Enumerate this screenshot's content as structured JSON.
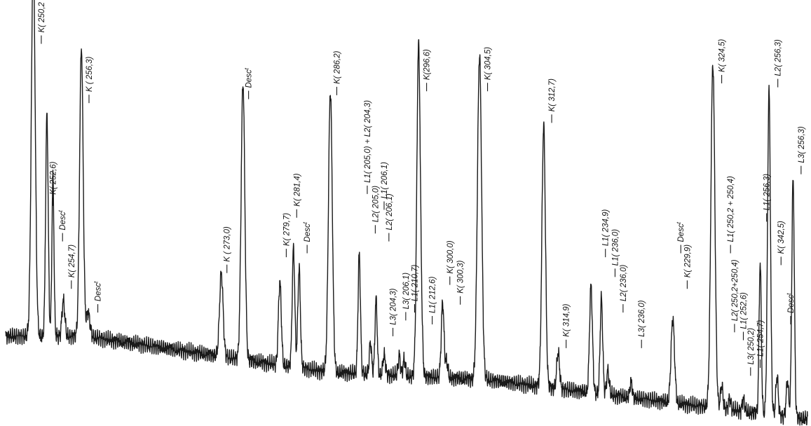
{
  "chart_data": {
    "type": "line",
    "title": "",
    "xlabel": "",
    "ylabel": "",
    "grid": false,
    "legend": "none",
    "line_color": "#1a1a1a",
    "x_range": [
      0,
      1000
    ],
    "y_range": [
      0,
      100
    ],
    "baseline": [
      [
        0,
        22
      ],
      [
        100,
        22
      ],
      [
        400,
        13
      ],
      [
        600,
        11
      ],
      [
        1000,
        1
      ]
    ],
    "peaks": [
      {
        "x": 34.5,
        "height": 96,
        "w": 2.4
      },
      {
        "x": 51.5,
        "height": 56,
        "w": 1.6
      },
      {
        "x": 59,
        "height": 40,
        "w": 1.3
      },
      {
        "x": 72,
        "height": 9,
        "w": 1.8
      },
      {
        "x": 94.5,
        "height": 73,
        "w": 2.2
      },
      {
        "x": 103,
        "height": 6,
        "w": 2.2
      },
      {
        "x": 269,
        "height": 21,
        "w": 2.2
      },
      {
        "x": 296,
        "height": 70,
        "w": 2.3
      },
      {
        "x": 342,
        "height": 21,
        "w": 1.8
      },
      {
        "x": 359,
        "height": 30,
        "w": 1.6
      },
      {
        "x": 366,
        "height": 25,
        "w": 1.6
      },
      {
        "x": 405,
        "height": 71,
        "w": 2.4
      },
      {
        "x": 441,
        "height": 30,
        "w": 1.5
      },
      {
        "x": 455,
        "height": 8,
        "w": 1.4
      },
      {
        "x": 462,
        "height": 19,
        "w": 1.4
      },
      {
        "x": 472,
        "height": 5,
        "w": 1.5
      },
      {
        "x": 491,
        "height": 5,
        "w": 1.4
      },
      {
        "x": 497,
        "height": 4,
        "w": 1.4
      },
      {
        "x": 515,
        "height": 84,
        "w": 2.2
      },
      {
        "x": 519,
        "height": 6,
        "w": 1.4
      },
      {
        "x": 545,
        "height": 19,
        "w": 1.7
      },
      {
        "x": 550,
        "height": 4,
        "w": 1.5
      },
      {
        "x": 591,
        "height": 82,
        "w": 2.6
      },
      {
        "x": 671,
        "height": 66,
        "w": 2.2
      },
      {
        "x": 689,
        "height": 9,
        "w": 1.8
      },
      {
        "x": 730,
        "height": 27,
        "w": 1.8
      },
      {
        "x": 743,
        "height": 24,
        "w": 1.6
      },
      {
        "x": 751,
        "height": 6,
        "w": 1.6
      },
      {
        "x": 780,
        "height": 4,
        "w": 1.4
      },
      {
        "x": 832,
        "height": 21,
        "w": 2.2
      },
      {
        "x": 882,
        "height": 87,
        "w": 2.5
      },
      {
        "x": 893,
        "height": 6,
        "w": 1.5
      },
      {
        "x": 903,
        "height": 3,
        "w": 1.4
      },
      {
        "x": 920,
        "height": 3,
        "w": 1.4
      },
      {
        "x": 941,
        "height": 38,
        "w": 1.4
      },
      {
        "x": 952,
        "height": 82,
        "w": 1.8
      },
      {
        "x": 962,
        "height": 10,
        "w": 1.5
      },
      {
        "x": 975,
        "height": 9,
        "w": 1.5
      },
      {
        "x": 982,
        "height": 60,
        "w": 1.6
      }
    ],
    "labels": [
      {
        "text": "K( 250,2 + 250,4)",
        "x": 44.5,
        "y": 96
      },
      {
        "text": "K( 252,6)",
        "x": 59,
        "y": 55
      },
      {
        "text": "Desc",
        "sup": "t",
        "x": 71,
        "y": 46
      },
      {
        "text": "K( 254,7)",
        "x": 82,
        "y": 34
      },
      {
        "text": "K ( 256,3)",
        "x": 104,
        "y": 81
      },
      {
        "text": "Desc",
        "sup": "t",
        "x": 115,
        "y": 28
      },
      {
        "text": "K ( 273,0)",
        "x": 276,
        "y": 38
      },
      {
        "text": "Desc",
        "sup": "t",
        "x": 303,
        "y": 82
      },
      {
        "text": "K( 279,7)",
        "x": 350,
        "y": 42
      },
      {
        "text": "K( 281,4)",
        "x": 363,
        "y": 52
      },
      {
        "text": "Desc",
        "sup": "t",
        "x": 376,
        "y": 43
      },
      {
        "text": "K( 286,2)",
        "x": 413,
        "y": 83
      },
      {
        "text": "L1( 205,0) + L2( 204,3)",
        "x": 451,
        "y": 58
      },
      {
        "text": "L2( 205,0)",
        "x": 461,
        "y": 48
      },
      {
        "text": "L1( 206,1)",
        "x": 472,
        "y": 54
      },
      {
        "text": "L2( 206,1)",
        "x": 478,
        "y": 46
      },
      {
        "text": "L3( 204,3)",
        "x": 483,
        "y": 22
      },
      {
        "text": "L3( 206,1)",
        "x": 499,
        "y": 26
      },
      {
        "text": "L1( 210,7)",
        "x": 510,
        "y": 28
      },
      {
        "text": "K(296,6)",
        "x": 525,
        "y": 84
      },
      {
        "text": "L1( 212,6)",
        "x": 532,
        "y": 25
      },
      {
        "text": "K( 300,0)",
        "x": 554,
        "y": 35
      },
      {
        "text": "K( 300,3)",
        "x": 567,
        "y": 30
      },
      {
        "text": "K( 304,5)",
        "x": 601,
        "y": 84
      },
      {
        "text": "K( 312,7)",
        "x": 681,
        "y": 76
      },
      {
        "text": "K( 314,9)",
        "x": 699,
        "y": 19
      },
      {
        "text": "L1( 234,9)",
        "x": 748,
        "y": 42
      },
      {
        "text": "L1( 236,0)",
        "x": 760,
        "y": 37
      },
      {
        "text": "L2( 236,0)",
        "x": 770,
        "y": 28
      },
      {
        "text": "L3( 236,0)",
        "x": 793,
        "y": 19
      },
      {
        "text": "Desc",
        "sup": "t",
        "x": 842,
        "y": 43
      },
      {
        "text": "K( 229,9)",
        "x": 850,
        "y": 34
      },
      {
        "text": "K( 324,5)",
        "x": 893,
        "y": 86
      },
      {
        "text": "L1( 250,2 + 250,4)",
        "x": 904,
        "y": 43
      },
      {
        "text": "L2( 250,2+250,4)",
        "x": 909,
        "y": 23
      },
      {
        "text": "L1( 252,6)",
        "x": 920,
        "y": 21
      },
      {
        "text": "L3( 250,2)",
        "x": 929,
        "y": 12
      },
      {
        "text": "L1( 254,7)",
        "x": 941,
        "y": 14
      },
      {
        "text": "L1( 256,3)",
        "x": 949,
        "y": 51
      },
      {
        "text": "K( 342,5)",
        "x": 967,
        "y": 40
      },
      {
        "text": "L2( 256,3)",
        "x": 963,
        "y": 85
      },
      {
        "text": "Desc",
        "sup": "t",
        "x": 979,
        "y": 25
      },
      {
        "text": "L3( 256,3)",
        "x": 992,
        "y": 63
      }
    ]
  }
}
